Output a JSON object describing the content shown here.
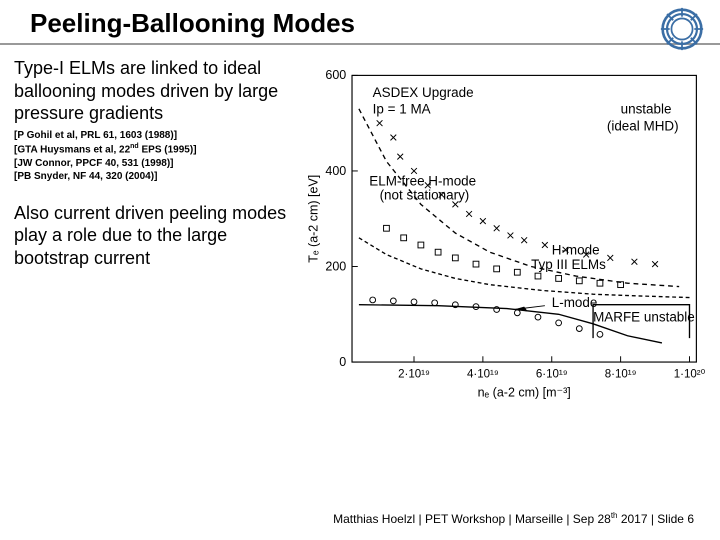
{
  "title": "Peeling-Ballooning Modes",
  "left": {
    "para1": "Type-I ELMs are linked to ideal ballooning modes driven by large pressure gradients",
    "refs": [
      "[P Gohil et al, PRL 61, 1603 (1988)]",
      "[GTA Huysmans et al, 22",
      " EPS (1995)]",
      "[JW Connor, PPCF 40, 531 (1998)]",
      "[PB Snyder, NF 44, 320 (2004)]"
    ],
    "ref_sup": "nd",
    "para2": "Also current driven peeling modes play a role due to the large bootstrap current"
  },
  "chart": {
    "facility": "ASDEX Upgrade",
    "ip": "Ip = 1 MA",
    "regions": {
      "unstable": "unstable",
      "idealMHD": "(ideal MHD)",
      "elmfree": "ELM-free H-mode",
      "notstationary": "(not stationary)",
      "hmode": "H-mode",
      "typ3": "Typ III ELMs",
      "lmode": "L-mode",
      "marfe": "MARFE unstable"
    },
    "axes": {
      "ylabel": "Tₑ (a-2 cm) [eV]",
      "xlabel": "nₑ (a-2 cm) [m⁻³]",
      "ylim": [
        0,
        600
      ],
      "yticks": [
        0,
        200,
        400,
        600
      ],
      "xticks_labels": [
        "2·10¹⁹",
        "4·10¹⁹",
        "6·10¹⁹",
        "8·10¹⁹",
        "1·10²⁰"
      ],
      "xticks_pos": [
        0.18,
        0.38,
        0.58,
        0.78,
        0.98
      ]
    },
    "curves": {
      "upper_dashed": [
        [
          0.02,
          530
        ],
        [
          0.1,
          420
        ],
        [
          0.2,
          330
        ],
        [
          0.3,
          270
        ],
        [
          0.4,
          230
        ],
        [
          0.52,
          200
        ],
        [
          0.65,
          180
        ],
        [
          0.8,
          165
        ],
        [
          0.95,
          158
        ]
      ],
      "mid_dashed": [
        [
          0.02,
          260
        ],
        [
          0.1,
          225
        ],
        [
          0.2,
          195
        ],
        [
          0.3,
          175
        ],
        [
          0.4,
          162
        ],
        [
          0.55,
          150
        ],
        [
          0.7,
          142
        ],
        [
          0.85,
          138
        ],
        [
          0.98,
          135
        ]
      ],
      "marfe_box": [
        [
          0.7,
          50
        ],
        [
          0.7,
          120
        ],
        [
          0.98,
          120
        ],
        [
          0.98,
          50
        ]
      ],
      "lmode_line": [
        [
          0.02,
          120
        ],
        [
          0.25,
          118
        ],
        [
          0.45,
          112
        ],
        [
          0.6,
          100
        ],
        [
          0.7,
          80
        ],
        [
          0.8,
          55
        ],
        [
          0.9,
          40
        ]
      ]
    },
    "scatter": {
      "crosses": [
        [
          0.08,
          500
        ],
        [
          0.12,
          470
        ],
        [
          0.14,
          430
        ],
        [
          0.18,
          400
        ],
        [
          0.22,
          370
        ],
        [
          0.26,
          350
        ],
        [
          0.3,
          330
        ],
        [
          0.34,
          310
        ],
        [
          0.38,
          295
        ],
        [
          0.42,
          280
        ],
        [
          0.46,
          265
        ],
        [
          0.5,
          255
        ],
        [
          0.56,
          245
        ],
        [
          0.62,
          235
        ],
        [
          0.68,
          225
        ],
        [
          0.75,
          218
        ],
        [
          0.82,
          210
        ],
        [
          0.88,
          205
        ]
      ],
      "squares": [
        [
          0.1,
          280
        ],
        [
          0.15,
          260
        ],
        [
          0.2,
          245
        ],
        [
          0.25,
          230
        ],
        [
          0.3,
          218
        ],
        [
          0.36,
          205
        ],
        [
          0.42,
          195
        ],
        [
          0.48,
          188
        ],
        [
          0.54,
          180
        ],
        [
          0.6,
          175
        ],
        [
          0.66,
          170
        ],
        [
          0.72,
          165
        ],
        [
          0.78,
          162
        ]
      ],
      "circles": [
        [
          0.06,
          130
        ],
        [
          0.12,
          128
        ],
        [
          0.18,
          126
        ],
        [
          0.24,
          124
        ],
        [
          0.3,
          120
        ],
        [
          0.36,
          116
        ],
        [
          0.42,
          110
        ],
        [
          0.48,
          103
        ],
        [
          0.54,
          94
        ],
        [
          0.6,
          82
        ],
        [
          0.66,
          70
        ],
        [
          0.72,
          58
        ]
      ]
    },
    "style": {
      "stroke": "#000000",
      "bg": "#ffffff",
      "font_size_axis": 13,
      "font_size_region": 14
    }
  },
  "footer": {
    "text1": "Matthias Hoelzl | PET Workshop | Marseille | Sep 28",
    "sup": "th",
    "text2": " 2017 |  Slide 6"
  },
  "logo_color": "#3b6ea5"
}
